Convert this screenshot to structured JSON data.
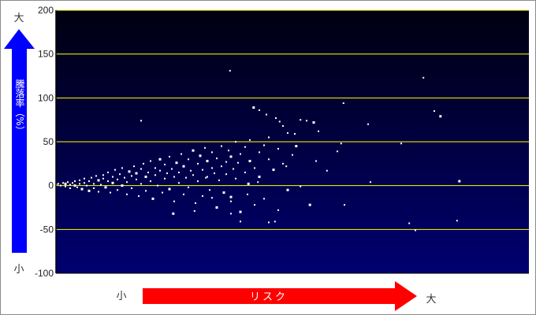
{
  "chart_data": {
    "type": "scatter",
    "title": "",
    "ylabel": "騰落率（%）",
    "xlabel": "リスク",
    "y_axis_low_label": "小",
    "y_axis_high_label": "大",
    "x_axis_low_label": "小",
    "x_axis_high_label": "大",
    "ylim": [
      -100,
      200
    ],
    "xlim": [
      0,
      100
    ],
    "y_ticks": [
      "200",
      "150",
      "100",
      "50",
      "0",
      "-50",
      "-100"
    ],
    "y_tick_values": [
      200,
      150,
      100,
      50,
      0,
      -50,
      -100
    ],
    "grid": true,
    "colors": {
      "grid": "#ffff00",
      "points": "#ffffff",
      "bg_top": "#000010",
      "bg_bottom": "#000070",
      "y_arrow": "#0000ff",
      "x_arrow": "#ff0000"
    },
    "points": [
      [
        0,
        1
      ],
      [
        0.5,
        2
      ],
      [
        1,
        0
      ],
      [
        1.5,
        3
      ],
      [
        2,
        -1
      ],
      [
        2,
        2
      ],
      [
        2.5,
        4
      ],
      [
        3,
        1
      ],
      [
        3,
        -3
      ],
      [
        3.5,
        3
      ],
      [
        4,
        0
      ],
      [
        4,
        5
      ],
      [
        4.5,
        -2
      ],
      [
        5,
        2
      ],
      [
        5,
        6
      ],
      [
        5.5,
        -4
      ],
      [
        6,
        3
      ],
      [
        6,
        8
      ],
      [
        6.5,
        0
      ],
      [
        7,
        5
      ],
      [
        7,
        -6
      ],
      [
        7.5,
        9
      ],
      [
        8,
        2
      ],
      [
        8,
        -3
      ],
      [
        8.5,
        11
      ],
      [
        9,
        6
      ],
      [
        9,
        -7
      ],
      [
        9.5,
        1
      ],
      [
        10,
        8
      ],
      [
        10,
        12
      ],
      [
        10.5,
        -2
      ],
      [
        11,
        5
      ],
      [
        11,
        15
      ],
      [
        11.5,
        -8
      ],
      [
        12,
        10
      ],
      [
        12,
        3
      ],
      [
        12.5,
        18
      ],
      [
        13,
        -5
      ],
      [
        13,
        7
      ],
      [
        13.5,
        13
      ],
      [
        14,
        0
      ],
      [
        14,
        20
      ],
      [
        14.5,
        9
      ],
      [
        15,
        -10
      ],
      [
        15,
        4
      ],
      [
        15.5,
        16
      ],
      [
        16,
        11
      ],
      [
        16,
        -3
      ],
      [
        16.5,
        22
      ],
      [
        17,
        7
      ],
      [
        17,
        14
      ],
      [
        17.5,
        -12
      ],
      [
        18,
        2
      ],
      [
        18,
        19
      ],
      [
        18.5,
        25
      ],
      [
        19,
        10
      ],
      [
        19,
        -6
      ],
      [
        19.5,
        15
      ],
      [
        20,
        5
      ],
      [
        20,
        28
      ],
      [
        20.5,
        -15
      ],
      [
        21,
        12
      ],
      [
        21,
        20
      ],
      [
        21.5,
        0
      ],
      [
        22,
        17
      ],
      [
        22,
        30
      ],
      [
        22.5,
        -8
      ],
      [
        23,
        8
      ],
      [
        23,
        24
      ],
      [
        23.5,
        14
      ],
      [
        24,
        -4
      ],
      [
        24,
        33
      ],
      [
        24.5,
        19
      ],
      [
        25,
        10
      ],
      [
        25,
        -18
      ],
      [
        25.5,
        26
      ],
      [
        26,
        3
      ],
      [
        26,
        15
      ],
      [
        26.5,
        36
      ],
      [
        27,
        -10
      ],
      [
        27,
        22
      ],
      [
        27.5,
        9
      ],
      [
        28,
        30
      ],
      [
        28,
        -2
      ],
      [
        28.5,
        17
      ],
      [
        29,
        40
      ],
      [
        29,
        12
      ],
      [
        29.5,
        -20
      ],
      [
        30,
        25
      ],
      [
        30,
        5
      ],
      [
        30.5,
        34
      ],
      [
        31,
        18
      ],
      [
        31,
        -12
      ],
      [
        31.5,
        43
      ],
      [
        32,
        10
      ],
      [
        32,
        28
      ],
      [
        32.5,
        -5
      ],
      [
        33,
        20
      ],
      [
        33,
        38
      ],
      [
        33.5,
        14
      ],
      [
        34,
        -25
      ],
      [
        34,
        31
      ],
      [
        34.5,
        6
      ],
      [
        35,
        45
      ],
      [
        35,
        22
      ],
      [
        35.5,
        -8
      ],
      [
        36,
        27
      ],
      [
        36,
        13
      ],
      [
        36.5,
        40
      ],
      [
        37,
        -18
      ],
      [
        37,
        33
      ],
      [
        37.5,
        19
      ],
      [
        38,
        50
      ],
      [
        38,
        8
      ],
      [
        38.5,
        26
      ],
      [
        39,
        -30
      ],
      [
        39,
        36
      ],
      [
        40,
        15
      ],
      [
        40,
        44
      ],
      [
        40.5,
        -10
      ],
      [
        41,
        28
      ],
      [
        41,
        52
      ],
      [
        42,
        20
      ],
      [
        42,
        -22
      ],
      [
        43,
        38
      ],
      [
        43,
        10
      ],
      [
        44,
        46
      ],
      [
        44,
        -15
      ],
      [
        45,
        30
      ],
      [
        45,
        55
      ],
      [
        46,
        18
      ],
      [
        47,
        -28
      ],
      [
        47,
        42
      ],
      [
        48,
        25
      ],
      [
        49,
        60
      ],
      [
        49,
        -5
      ],
      [
        50,
        35
      ],
      [
        36.8,
        131
      ],
      [
        77.7,
        123
      ],
      [
        80,
        85
      ],
      [
        81.3,
        79
      ],
      [
        60.8,
        94
      ],
      [
        66,
        70
      ],
      [
        73,
        48
      ],
      [
        66.5,
        4
      ],
      [
        85.3,
        5
      ],
      [
        84.8,
        -40
      ],
      [
        74.7,
        -43
      ],
      [
        76,
        -51
      ],
      [
        61,
        -22
      ],
      [
        53.7,
        -22
      ],
      [
        55,
        28
      ],
      [
        57.3,
        17
      ],
      [
        59.5,
        39
      ],
      [
        60.3,
        48
      ],
      [
        50.8,
        45
      ],
      [
        46.3,
        -41
      ],
      [
        45,
        -42
      ],
      [
        18,
        74
      ],
      [
        37,
        -32
      ],
      [
        24.8,
        -32
      ],
      [
        29.3,
        -29
      ],
      [
        48,
        68
      ],
      [
        44.5,
        81
      ],
      [
        43,
        86
      ],
      [
        41.8,
        89
      ],
      [
        47.3,
        73
      ],
      [
        46.5,
        77
      ],
      [
        51.7,
        75
      ],
      [
        53,
        74
      ],
      [
        54.5,
        72
      ],
      [
        55.5,
        62
      ],
      [
        50.5,
        59
      ],
      [
        48.7,
        22
      ],
      [
        51.7,
        -1
      ],
      [
        37,
        -13
      ],
      [
        39,
        -41
      ],
      [
        33,
        -14
      ],
      [
        31.7,
        9
      ],
      [
        42.7,
        4
      ],
      [
        40.7,
        2
      ]
    ]
  }
}
